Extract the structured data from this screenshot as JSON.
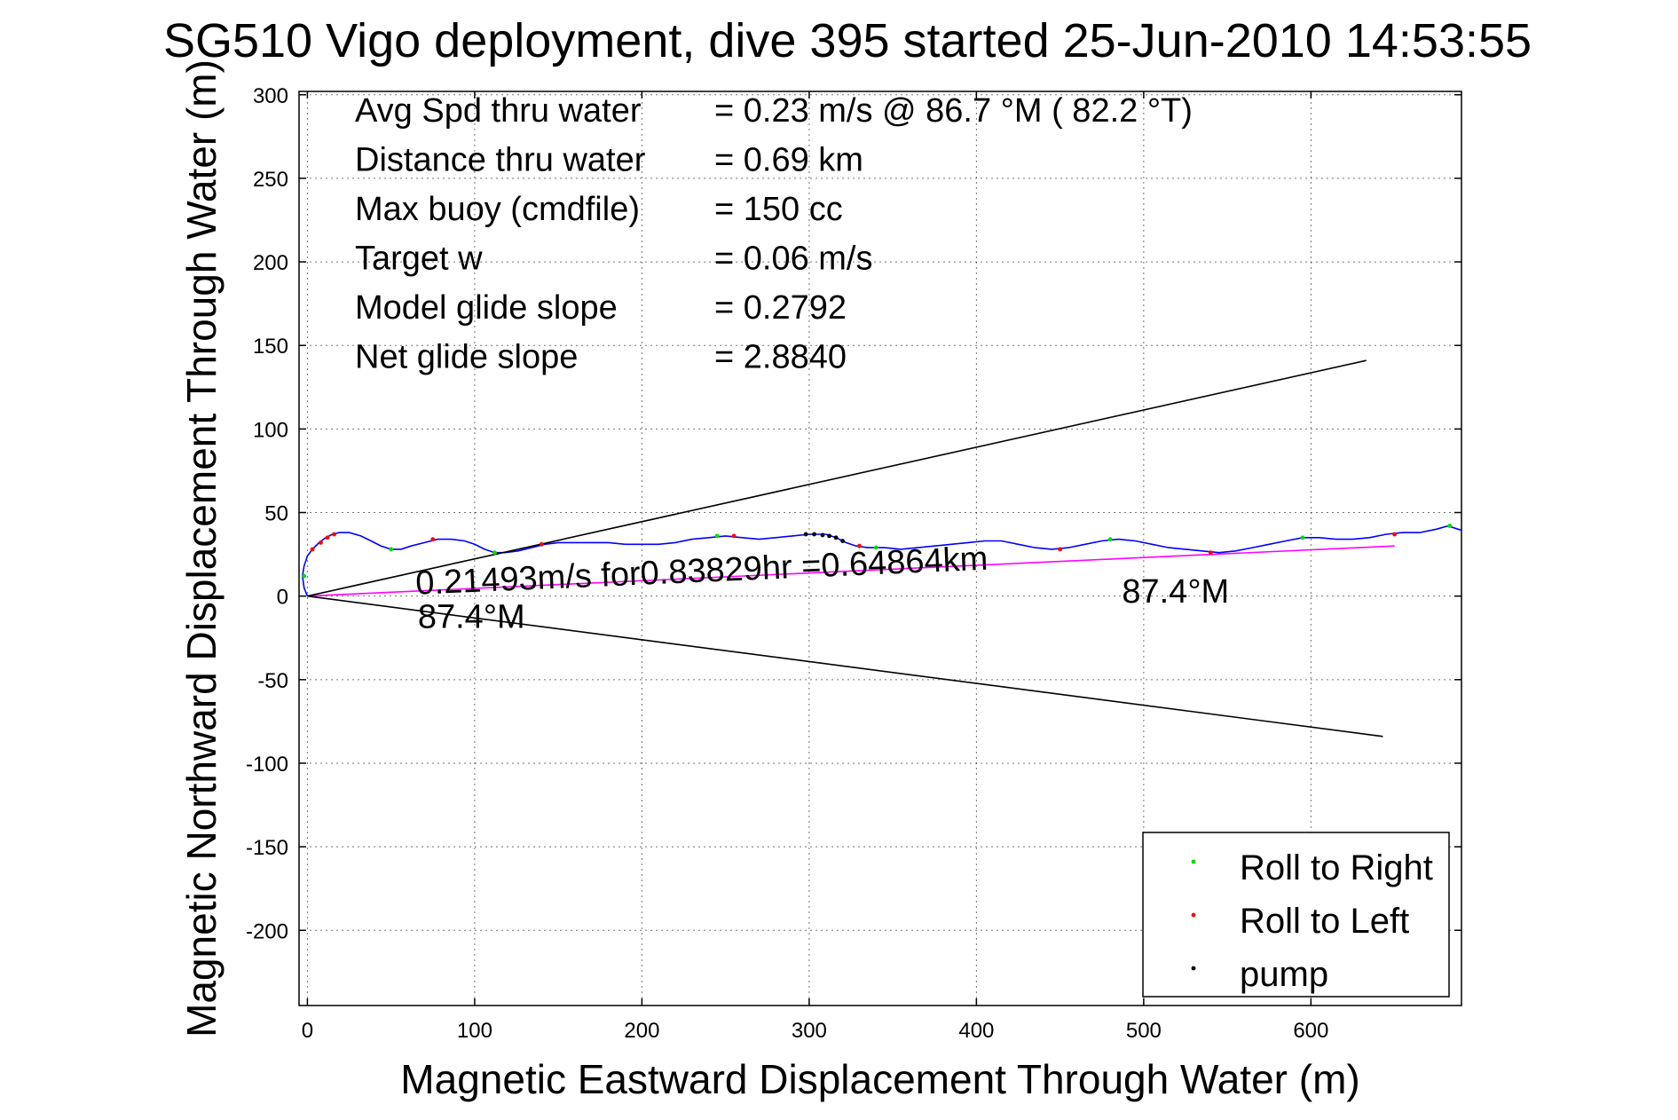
{
  "chart_data": {
    "type": "line",
    "title": "SG510 Vigo deployment, dive 395 started 25-Jun-2010 14:53:55",
    "xlabel": "Magnetic Eastward Displacement Through Water (m)",
    "ylabel": "Magnetic Northward Displacement Through Water (m)",
    "xlim": [
      -5,
      690
    ],
    "ylim": [
      -245,
      302
    ],
    "xticks": [
      0,
      100,
      200,
      300,
      400,
      500,
      600
    ],
    "yticks": [
      300,
      250,
      200,
      150,
      100,
      50,
      0,
      -50,
      -100,
      -150,
      -200
    ],
    "grid": true,
    "legend_position": "bottom-right",
    "stats": [
      {
        "label": "Avg Spd thru water",
        "value": "=  0.23 m/s @  86.7 °M ( 82.2 °T)"
      },
      {
        "label": "Distance thru water",
        "value": "=  0.69 km"
      },
      {
        "label": "Max buoy (cmdfile)",
        "value": "= 150 cc"
      },
      {
        "label": "Target w",
        "value": "= 0.06 m/s"
      },
      {
        "label": "Model glide slope",
        "value": "= 0.2792"
      },
      {
        "label": "Net glide slope",
        "value": "= 2.8840"
      }
    ],
    "annotations": [
      {
        "text": "0.21493m/s for0.83829hr =0.64864km",
        "x": 65,
        "y": 1,
        "rotate": -2.5
      },
      {
        "text": "87.4°M",
        "x": 66,
        "y": -19,
        "rotate": 0
      },
      {
        "text": "87.4°M",
        "x": 487,
        "y": -4,
        "rotate": 0
      }
    ],
    "series": [
      {
        "name": "",
        "color": "#0000ff",
        "points": [
          [
            0,
            0
          ],
          [
            -2,
            5
          ],
          [
            -3,
            12
          ],
          [
            -2,
            18
          ],
          [
            0,
            24
          ],
          [
            3,
            28
          ],
          [
            7,
            32
          ],
          [
            11,
            35
          ],
          [
            15,
            37
          ],
          [
            19,
            38
          ],
          [
            25,
            38
          ],
          [
            32,
            36
          ],
          [
            38,
            33
          ],
          [
            44,
            30
          ],
          [
            50,
            28
          ],
          [
            56,
            28
          ],
          [
            62,
            30
          ],
          [
            70,
            32
          ],
          [
            78,
            34
          ],
          [
            86,
            34
          ],
          [
            94,
            33
          ],
          [
            100,
            31
          ],
          [
            106,
            28
          ],
          [
            112,
            26
          ],
          [
            118,
            26
          ],
          [
            126,
            27
          ],
          [
            134,
            29
          ],
          [
            142,
            31
          ],
          [
            150,
            32
          ],
          [
            160,
            32
          ],
          [
            170,
            32
          ],
          [
            180,
            32
          ],
          [
            190,
            31
          ],
          [
            200,
            31
          ],
          [
            210,
            31
          ],
          [
            220,
            32
          ],
          [
            230,
            34
          ],
          [
            240,
            35
          ],
          [
            250,
            36
          ],
          [
            260,
            35
          ],
          [
            270,
            34
          ],
          [
            280,
            35
          ],
          [
            290,
            36
          ],
          [
            300,
            37
          ],
          [
            310,
            37
          ],
          [
            316,
            35
          ],
          [
            322,
            32
          ],
          [
            328,
            30
          ],
          [
            335,
            29
          ],
          [
            345,
            29
          ],
          [
            355,
            28
          ],
          [
            365,
            29
          ],
          [
            375,
            30
          ],
          [
            385,
            31
          ],
          [
            395,
            32
          ],
          [
            405,
            33
          ],
          [
            415,
            33
          ],
          [
            425,
            31
          ],
          [
            435,
            29
          ],
          [
            445,
            28
          ],
          [
            455,
            29
          ],
          [
            465,
            31
          ],
          [
            475,
            33
          ],
          [
            485,
            34
          ],
          [
            495,
            33
          ],
          [
            505,
            31
          ],
          [
            515,
            29
          ],
          [
            525,
            28
          ],
          [
            535,
            27
          ],
          [
            545,
            26
          ],
          [
            555,
            27
          ],
          [
            565,
            29
          ],
          [
            575,
            31
          ],
          [
            585,
            33
          ],
          [
            595,
            35
          ],
          [
            605,
            35
          ],
          [
            615,
            34
          ],
          [
            625,
            34
          ],
          [
            635,
            35
          ],
          [
            645,
            37
          ],
          [
            655,
            38
          ],
          [
            665,
            38
          ],
          [
            675,
            40
          ],
          [
            682,
            42
          ],
          [
            688,
            40
          ],
          [
            695,
            38
          ]
        ]
      },
      {
        "name": "",
        "color": "#ff00ff",
        "points": [
          [
            0,
            0
          ],
          [
            650,
            30
          ]
        ]
      },
      {
        "name": "",
        "color": "#000000",
        "points": [
          [
            0,
            0
          ],
          [
            633,
            141
          ]
        ]
      },
      {
        "name": "",
        "color": "#000000",
        "points": [
          [
            0,
            0
          ],
          [
            643,
            -84
          ]
        ]
      }
    ],
    "markers": [
      {
        "name": "Roll to Right",
        "color": "#00dd00",
        "points": [
          [
            -2,
            12
          ],
          [
            50,
            28
          ],
          [
            112,
            26
          ],
          [
            140,
            31
          ],
          [
            245,
            36
          ],
          [
            340,
            29
          ],
          [
            480,
            34
          ],
          [
            595,
            35
          ],
          [
            683,
            42
          ]
        ]
      },
      {
        "name": "Roll to Left",
        "color": "#ff0000",
        "points": [
          [
            3,
            28
          ],
          [
            8,
            32
          ],
          [
            12,
            35
          ],
          [
            16,
            37
          ],
          [
            75,
            34
          ],
          [
            140,
            31
          ],
          [
            255,
            36
          ],
          [
            330,
            30
          ],
          [
            450,
            28
          ],
          [
            540,
            26
          ],
          [
            650,
            37
          ]
        ]
      },
      {
        "name": "pump",
        "color": "#000000",
        "points": [
          [
            298,
            37
          ],
          [
            303,
            37
          ],
          [
            308,
            36.5
          ],
          [
            312,
            36
          ],
          [
            316,
            35
          ],
          [
            320,
            33
          ]
        ]
      }
    ],
    "legend": [
      {
        "label": "Roll to Right",
        "color": "#00dd00"
      },
      {
        "label": "Roll to Left",
        "color": "#ff0000"
      },
      {
        "label": "pump",
        "color": "#000000"
      }
    ]
  }
}
